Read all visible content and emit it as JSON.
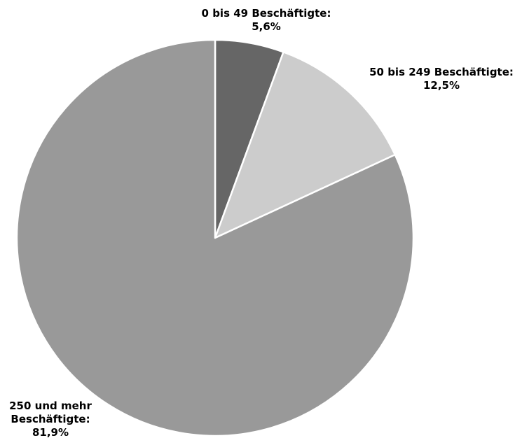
{
  "chart_data": {
    "type": "pie",
    "start_angle_deg": 0,
    "direction": "clockwise",
    "slices": [
      {
        "label_lines": [
          "0 bis 49 Beschäftigte:",
          "5,6%"
        ],
        "value": 5.6,
        "color": "#666666"
      },
      {
        "label_lines": [
          "50 bis 249 Beschäftigte:",
          "12,5%"
        ],
        "value": 12.5,
        "color": "#cccccc"
      },
      {
        "label_lines": [
          "250 und mehr",
          "Beschäftigte:",
          "81,9%"
        ],
        "value": 81.9,
        "color": "#999999"
      }
    ],
    "separator_color": "#ffffff"
  }
}
